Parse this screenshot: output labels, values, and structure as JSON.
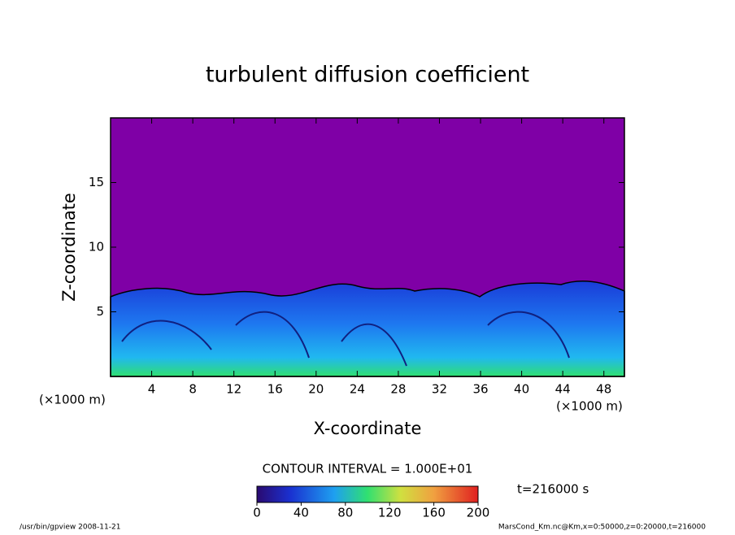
{
  "chart_data": {
    "type": "contour",
    "title": "turbulent diffusion coefficient",
    "x_label": "X-coordinate",
    "y_label": "Z-coordinate",
    "x_unit": "(×1000 m)",
    "y_unit": "(×1000 m)",
    "xlim": [
      0,
      50
    ],
    "xticks": [
      4,
      8,
      12,
      16,
      20,
      24,
      28,
      32,
      36,
      40,
      44,
      48
    ],
    "ylim": [
      0,
      20
    ],
    "yticks": [
      5,
      10,
      15
    ],
    "colorbar": {
      "lim": [
        0,
        200
      ],
      "ticks": [
        0,
        40,
        80,
        120,
        160,
        200
      ]
    },
    "contour_interval": "CONTOUR INTERVAL = 1.000E+01",
    "time_label": "t=216000 s",
    "footer_left": "/usr/bin/gpview   2008-11-21",
    "footer_right": "MarsCond_Km.nc@Km,x=0:50000,z=0:20000,t=216000"
  }
}
